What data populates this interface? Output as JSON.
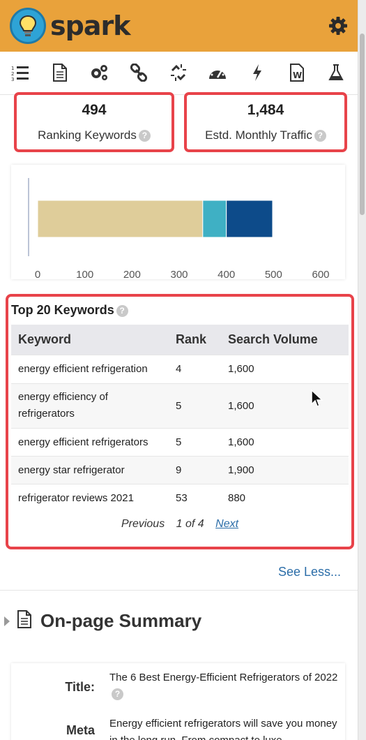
{
  "header": {
    "brand": "spark",
    "settings_icon": "gear-icon",
    "accent": "#e9a23b"
  },
  "toolbar": {
    "items": [
      {
        "name": "ranked-list-icon"
      },
      {
        "name": "document-icon"
      },
      {
        "name": "gears-icon"
      },
      {
        "name": "link-icon"
      },
      {
        "name": "broken-link-icon"
      },
      {
        "name": "speedometer-icon"
      },
      {
        "name": "lightning-icon"
      },
      {
        "name": "word-doc-icon"
      },
      {
        "name": "flask-icon"
      }
    ]
  },
  "stats": {
    "ranking_keywords": {
      "value": "494",
      "label": "Ranking Keywords"
    },
    "monthly_traffic": {
      "value": "1,484",
      "label": "Estd. Monthly Traffic"
    }
  },
  "chart_data": {
    "type": "bar",
    "orientation": "horizontal",
    "stacked": true,
    "categories": [
      ""
    ],
    "series": [
      {
        "values": [
          350
        ],
        "color": "#dfcd9a"
      },
      {
        "values": [
          50
        ],
        "color": "#3fb0c4"
      },
      {
        "values": [
          98
        ],
        "color": "#0d4b8a"
      }
    ],
    "x_ticks": [
      "0",
      "100",
      "200",
      "300",
      "400",
      "500",
      "600"
    ],
    "xlim": [
      0,
      600
    ]
  },
  "keywords": {
    "title": "Top 20 Keywords",
    "columns": [
      "Keyword",
      "Rank",
      "Search Volume"
    ],
    "rows": [
      {
        "keyword": "energy efficient refrigeration",
        "rank": "4",
        "volume": "1,600"
      },
      {
        "keyword": "energy efficiency of refrigerators",
        "rank": "5",
        "volume": "1,600"
      },
      {
        "keyword": "energy efficient refrigerators",
        "rank": "5",
        "volume": "1,600"
      },
      {
        "keyword": "energy star refrigerator",
        "rank": "9",
        "volume": "1,900"
      },
      {
        "keyword": "refrigerator reviews 2021",
        "rank": "53",
        "volume": "880"
      }
    ],
    "pager": {
      "prev": "Previous",
      "page": "1 of 4",
      "next": "Next"
    }
  },
  "see_less": "See Less...",
  "onpage": {
    "title": "On-page Summary",
    "title_label": "Title:",
    "title_value": "The 6 Best Energy-Efficient Refrigerators of 2022",
    "meta_label": "Meta",
    "meta_value": "Energy efficient refrigerators will save you money in the long run. From compact to luxe"
  }
}
